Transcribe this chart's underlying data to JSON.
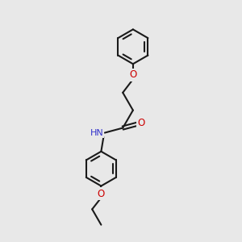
{
  "background_color": "#e8e8e8",
  "line_color": "#1a1a1a",
  "O_color": "#cc0000",
  "N_color": "#3333cc",
  "figsize": [
    3.0,
    3.0
  ],
  "dpi": 100,
  "bond_lw": 1.5,
  "font_size": 8.5,
  "ring_r": 0.72,
  "xlim": [
    0,
    10
  ],
  "ylim": [
    0,
    10
  ]
}
